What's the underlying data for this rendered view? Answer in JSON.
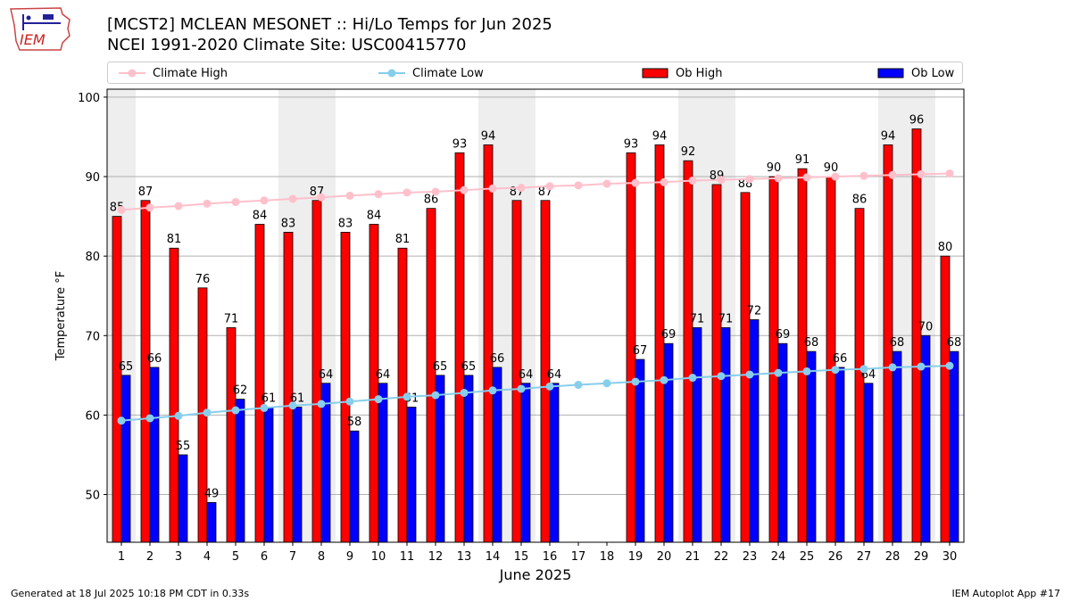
{
  "header": {
    "title_line1": "[MCST2] MCLEAN MESONET :: Hi/Lo Temps for Jun 2025",
    "title_line2": "NCEI 1991-2020 Climate Site: USC00415770",
    "logo_text": "IEM"
  },
  "legend": {
    "climate_high": "Climate High",
    "climate_low": "Climate Low",
    "ob_high": "Ob High",
    "ob_low": "Ob Low"
  },
  "footer": {
    "generated": "Generated at 18 Jul 2025 10:18 PM CDT in 0.33s",
    "app": "IEM Autoplot App #17"
  },
  "colors": {
    "ob_high": "#ff0000",
    "ob_low": "#0000ff",
    "climate_high": "#ffc0cb",
    "climate_low": "#87ceeb",
    "weekend_band": "#eeeeee",
    "grid": "#b0b0b0"
  },
  "chart_data": {
    "type": "bar",
    "title": "[MCST2] MCLEAN MESONET :: Hi/Lo Temps for Jun 2025",
    "subtitle": "NCEI 1991-2020 Climate Site: USC00415770",
    "xlabel": "June 2025",
    "ylabel": "Temperature °F",
    "ylim": [
      44,
      101
    ],
    "yticks": [
      50,
      60,
      70,
      80,
      90,
      100
    ],
    "grid": true,
    "legend_position": "top",
    "categories": [
      "1",
      "2",
      "3",
      "4",
      "5",
      "6",
      "7",
      "8",
      "9",
      "10",
      "11",
      "12",
      "13",
      "14",
      "15",
      "16",
      "17",
      "18",
      "19",
      "20",
      "21",
      "22",
      "23",
      "24",
      "25",
      "26",
      "27",
      "28",
      "29",
      "30"
    ],
    "weekend_days": [
      1,
      7,
      8,
      14,
      15,
      21,
      22,
      28,
      29
    ],
    "series": [
      {
        "name": "Ob High",
        "type": "bar",
        "values": [
          85,
          87,
          81,
          76,
          71,
          84,
          83,
          87,
          83,
          84,
          81,
          86,
          93,
          94,
          87,
          87,
          null,
          null,
          93,
          94,
          92,
          89,
          88,
          90,
          91,
          90,
          86,
          94,
          96,
          80
        ]
      },
      {
        "name": "Ob Low",
        "type": "bar",
        "values": [
          65,
          66,
          55,
          49,
          62,
          61,
          61,
          64,
          58,
          64,
          61,
          65,
          65,
          66,
          64,
          64,
          null,
          null,
          67,
          69,
          71,
          71,
          72,
          69,
          68,
          66,
          64,
          68,
          70,
          68
        ]
      },
      {
        "name": "Climate High",
        "type": "line",
        "values": [
          85.8,
          86.1,
          86.3,
          86.6,
          86.8,
          87.0,
          87.2,
          87.4,
          87.6,
          87.8,
          88.0,
          88.1,
          88.3,
          88.5,
          88.6,
          88.8,
          88.9,
          89.1,
          89.2,
          89.3,
          89.5,
          89.6,
          89.7,
          89.8,
          89.9,
          90.0,
          90.1,
          90.2,
          90.3,
          90.4
        ]
      },
      {
        "name": "Climate Low",
        "type": "line",
        "values": [
          59.3,
          59.6,
          59.9,
          60.3,
          60.6,
          60.9,
          61.2,
          61.4,
          61.7,
          62.0,
          62.3,
          62.5,
          62.8,
          63.1,
          63.3,
          63.6,
          63.8,
          64.0,
          64.2,
          64.4,
          64.7,
          64.9,
          65.1,
          65.3,
          65.5,
          65.7,
          65.8,
          66.0,
          66.1,
          66.2
        ]
      }
    ]
  }
}
